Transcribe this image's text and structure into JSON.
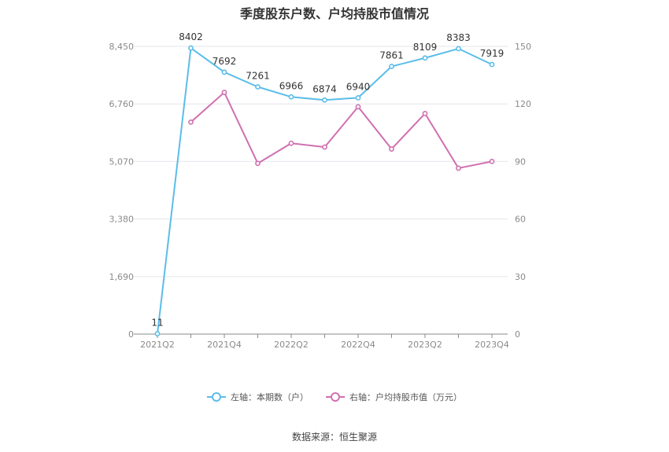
{
  "colors": {
    "left_series": "#5bbdea",
    "right_series": "#d070b0",
    "grid": "#e6e6ee",
    "axis": "#8a8a8a"
  },
  "chart_data": {
    "type": "line",
    "title": "季度股东户数、户均持股市值情况",
    "source": "数据来源：恒生聚源",
    "x": [
      "2021Q2",
      "2021Q3",
      "2021Q4",
      "2022Q1",
      "2022Q2",
      "2022Q3",
      "2022Q4",
      "2023Q1",
      "2023Q2",
      "2023Q3",
      "2023Q4"
    ],
    "x_tick_labels": [
      "2021Q2",
      "2021Q4",
      "2022Q2",
      "2022Q4",
      "2023Q2",
      "2023Q4"
    ],
    "left_axis": {
      "ylim": [
        0,
        8450
      ],
      "ticks": [
        "0",
        "1,690",
        "3,380",
        "5,070",
        "6,760",
        "8,450"
      ]
    },
    "right_axis": {
      "ylim": [
        0,
        150
      ],
      "ticks": [
        "0",
        "30",
        "60",
        "90",
        "120",
        "150"
      ]
    },
    "series": [
      {
        "name": "左轴：本期数（户）",
        "axis": "left",
        "values": [
          11,
          8402,
          7692,
          7261,
          6966,
          6874,
          6940,
          7861,
          8109,
          8383,
          7919
        ],
        "labels": [
          "11",
          "8402",
          "7692",
          "7261",
          "6966",
          "6874",
          "6940",
          "7861",
          "8109",
          "8383",
          "7919"
        ]
      },
      {
        "name": "右轴：户均持股市值（万元）",
        "axis": "right",
        "values": [
          null,
          110.5,
          126.0,
          89.0,
          99.5,
          97.5,
          118.5,
          96.5,
          115.0,
          86.5,
          90.0
        ]
      }
    ],
    "grid": true,
    "legend_position": "bottom"
  }
}
